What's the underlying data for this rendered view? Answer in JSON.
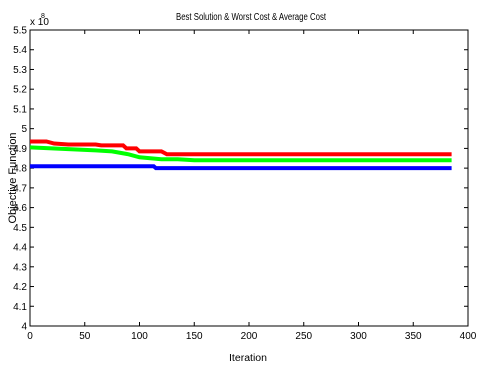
{
  "chart_data": {
    "type": "line",
    "title": "Best Solution & Worst Cost & Average Cost",
    "xlabel": "Iteration",
    "ylabel": "Objective Function",
    "y_exponent_label": "x 10",
    "y_exponent": "8",
    "xlim": [
      0,
      400
    ],
    "ylim": [
      4.0,
      5.5
    ],
    "x_ticks": [
      0,
      50,
      100,
      150,
      200,
      250,
      300,
      350,
      400
    ],
    "y_ticks": [
      4,
      4.1,
      4.2,
      4.3,
      4.4,
      4.5,
      4.6,
      4.7,
      4.8,
      4.9,
      5,
      5.1,
      5.2,
      5.3,
      5.4,
      5.5
    ],
    "grid": false,
    "legend": "none",
    "series": [
      {
        "color": "#ff0000",
        "points": [
          [
            0,
            4.935
          ],
          [
            15,
            4.935
          ],
          [
            22,
            4.925
          ],
          [
            35,
            4.92
          ],
          [
            60,
            4.92
          ],
          [
            65,
            4.915
          ],
          [
            85,
            4.915
          ],
          [
            88,
            4.9
          ],
          [
            97,
            4.9
          ],
          [
            100,
            4.885
          ],
          [
            120,
            4.885
          ],
          [
            125,
            4.87
          ],
          [
            385,
            4.87
          ]
        ]
      },
      {
        "color": "#00ff00",
        "points": [
          [
            0,
            4.905
          ],
          [
            20,
            4.9
          ],
          [
            40,
            4.895
          ],
          [
            60,
            4.89
          ],
          [
            75,
            4.885
          ],
          [
            90,
            4.87
          ],
          [
            100,
            4.855
          ],
          [
            110,
            4.85
          ],
          [
            120,
            4.845
          ],
          [
            135,
            4.845
          ],
          [
            150,
            4.84
          ],
          [
            385,
            4.84
          ]
        ]
      },
      {
        "color": "#0000ff",
        "points": [
          [
            0,
            4.81
          ],
          [
            113,
            4.81
          ],
          [
            115,
            4.8
          ],
          [
            385,
            4.8
          ]
        ]
      }
    ]
  }
}
